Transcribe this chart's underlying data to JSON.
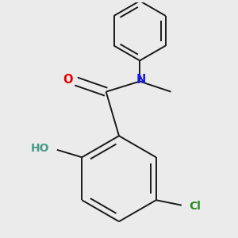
{
  "background_color": "#ebebeb",
  "bond_color": "#1a1a1a",
  "bond_width": 1.4,
  "atom_colors": {
    "O_carbonyl": "#e60000",
    "O_hydroxyl": "#4a9a8a",
    "N": "#1a1aee",
    "Cl": "#228b22",
    "C": "#1a1a1a"
  },
  "font_size": 10.5
}
